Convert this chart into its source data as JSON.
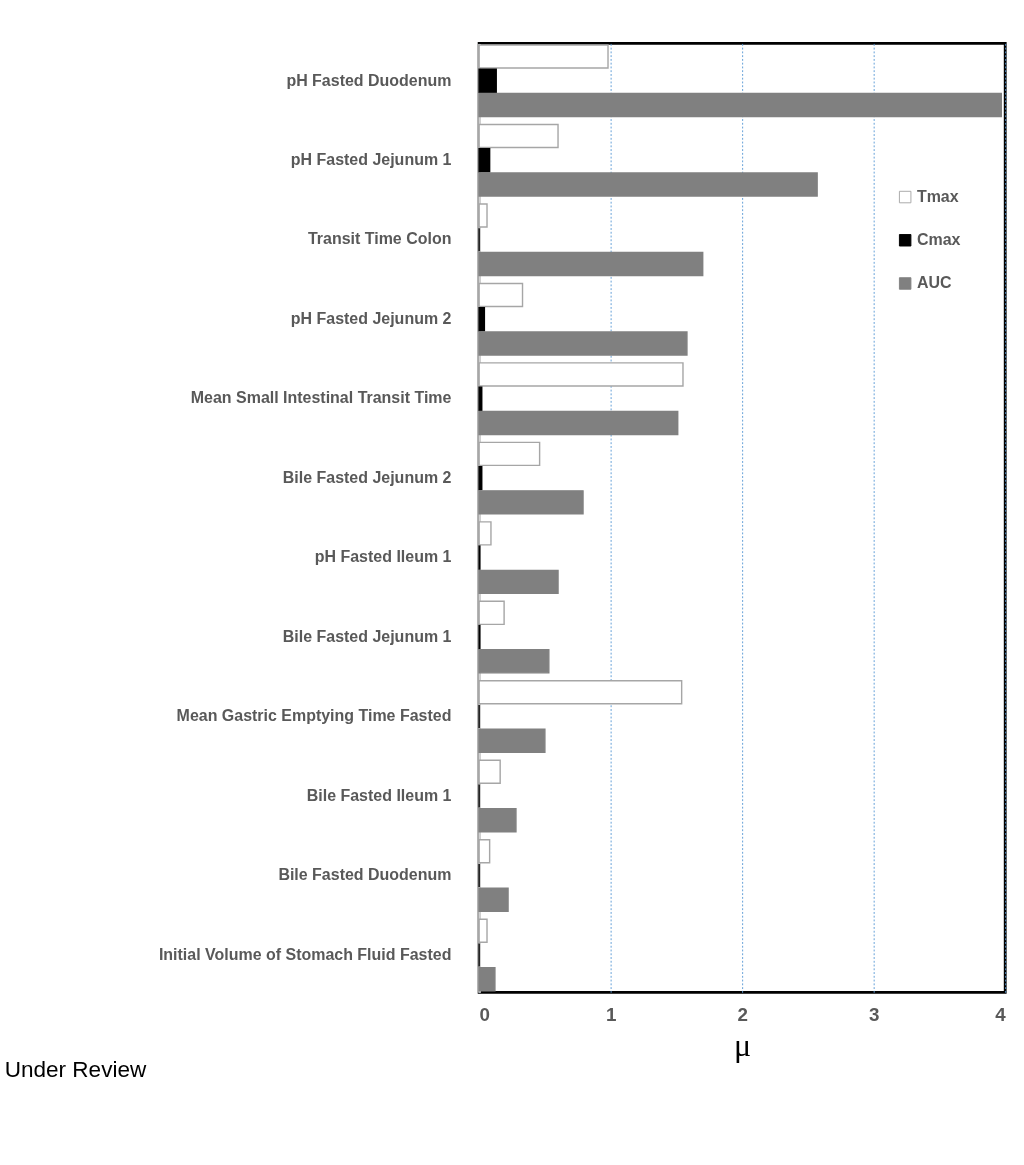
{
  "chart_data": {
    "type": "bar",
    "orientation": "horizontal",
    "xlabel": "μ",
    "categories": [
      "pH Fasted Duodenum",
      "pH Fasted Jejunum 1",
      "Transit Time Colon",
      "pH Fasted Jejunum 2",
      "Mean Small Intestinal Transit Time",
      "Bile Fasted Jejunum 2",
      "pH Fasted Ileum 1",
      "Bile Fasted Jejunum 1",
      "Mean Gastric Emptying Time Fasted",
      "Bile Fasted Ileum 1",
      "Bile Fasted Duodenum",
      "Initial Volume of Stomach Fluid Fasted"
    ],
    "series": [
      {
        "name": "Tmax",
        "color": "#ffffff",
        "values": [
          0.98,
          0.6,
          0.06,
          0.33,
          1.55,
          0.46,
          0.09,
          0.19,
          1.54,
          0.16,
          0.08,
          0.06
        ]
      },
      {
        "name": "Cmax",
        "color": "#000000",
        "values": [
          0.13,
          0.08,
          0,
          0.04,
          0.02,
          0.02,
          0.005,
          0.005,
          0,
          0,
          0,
          0
        ]
      },
      {
        "name": "AUC",
        "color": "#808080",
        "values": [
          3.97,
          2.57,
          1.7,
          1.58,
          1.51,
          0.79,
          0.6,
          0.53,
          0.5,
          0.28,
          0.22,
          0.12
        ]
      }
    ],
    "xlim": [
      0,
      4
    ],
    "xticks": [
      0,
      1,
      2,
      3,
      4
    ],
    "grid": "x",
    "legend": "right",
    "annotations": [
      "Under Review"
    ]
  }
}
